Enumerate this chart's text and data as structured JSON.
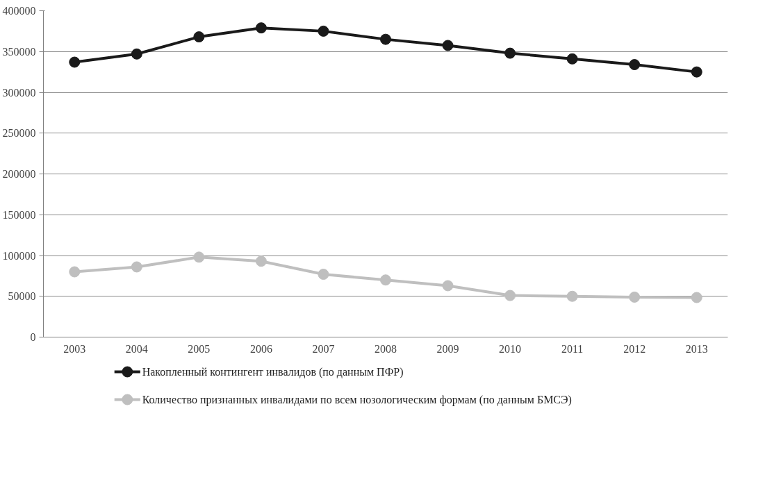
{
  "chart_data": {
    "type": "line",
    "categories": [
      "2003",
      "2004",
      "2005",
      "2006",
      "2007",
      "2008",
      "2009",
      "2010",
      "2011",
      "2012",
      "2013"
    ],
    "series": [
      {
        "name": "Накопленный контингент инвалидов (по данным ПФР)",
        "color": "#1a1a1a",
        "values": [
          337000,
          347000,
          368000,
          379000,
          375000,
          365000,
          357500,
          348000,
          341000,
          334000,
          325000
        ]
      },
      {
        "name": "Количество признанных инвалидами по всем нозологическим формам (по данным БМСЭ)",
        "color": "#bfbfbf",
        "values": [
          80000,
          86000,
          98000,
          93000,
          77000,
          70000,
          63000,
          51000,
          50000,
          49000,
          48500
        ]
      }
    ],
    "ylim": [
      0,
      400000
    ],
    "yticks": [
      0,
      50000,
      100000,
      150000,
      200000,
      250000,
      300000,
      350000,
      400000
    ],
    "grid": "y",
    "legend": "bottom",
    "marker": "circle",
    "line_style": "solid"
  }
}
